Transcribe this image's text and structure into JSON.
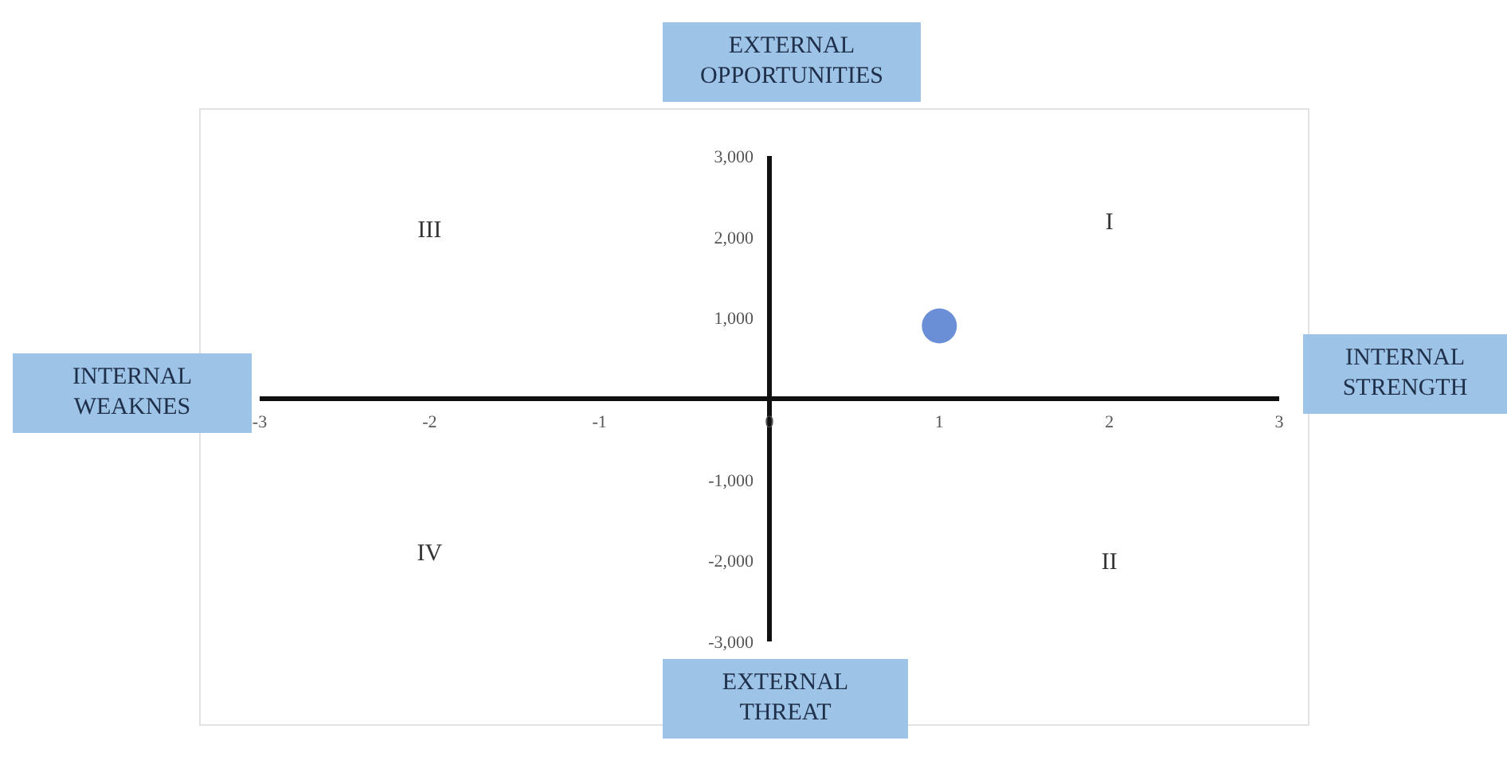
{
  "chart_data": {
    "type": "scatter",
    "annotations": [
      "EXTERNAL OPPORTUNITIES",
      "INTERNAL STRENGTH",
      "EXTERNAL THREAT",
      "INTERNAL WEAKNES",
      "I",
      "II",
      "III",
      "IV"
    ],
    "x": [
      1
    ],
    "values": [
      900
    ],
    "color": "#6a8fd6",
    "marker": "circle",
    "xlim": [
      -3,
      3
    ],
    "xticks": [
      -3,
      -2,
      -1,
      0,
      1,
      2,
      3
    ],
    "ylim": [
      -3000,
      3000
    ],
    "yticks": [
      {
        "value": -3000,
        "label": "-3,000"
      },
      {
        "value": -2000,
        "label": "-2,000"
      },
      {
        "value": -1000,
        "label": "-1,000"
      },
      {
        "value": 1000,
        "label": "1,000"
      },
      {
        "value": 2000,
        "label": "2,000"
      },
      {
        "value": 3000,
        "label": "3,000"
      }
    ],
    "grid": false,
    "legend": false
  }
}
